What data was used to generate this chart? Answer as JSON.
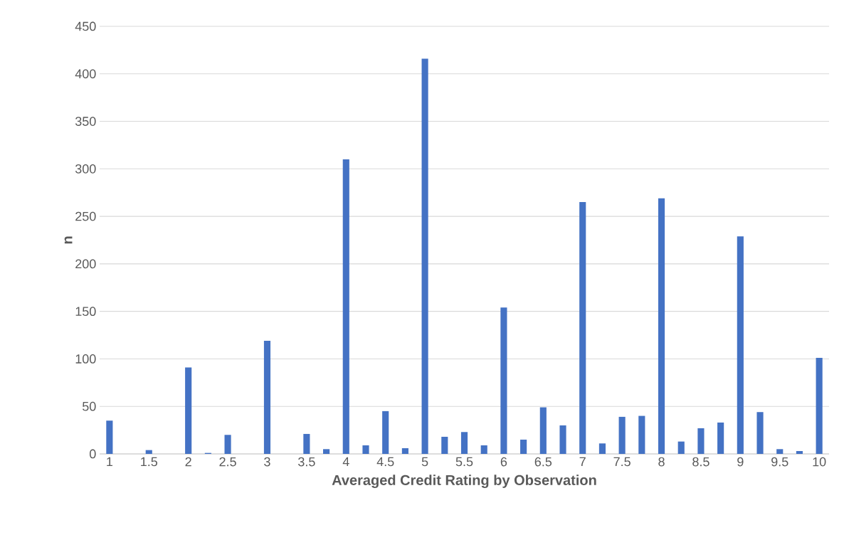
{
  "chart_data": {
    "type": "bar",
    "xlabel": "Averaged Credit Rating by Observation",
    "ylabel": "n",
    "categories": [
      "1",
      null,
      "1.5",
      null,
      "2",
      null,
      "2.5",
      null,
      "3",
      null,
      "3.5",
      null,
      "4",
      null,
      "4.5",
      null,
      "5",
      null,
      "5.5",
      null,
      "6",
      null,
      "6.5",
      null,
      "7",
      null,
      "7.5",
      null,
      "8",
      null,
      "8.5",
      null,
      "9",
      null,
      "9.5",
      null,
      "10"
    ],
    "values": [
      35,
      0,
      4,
      0,
      91,
      1,
      20,
      0,
      119,
      0,
      21,
      5,
      310,
      9,
      45,
      6,
      416,
      18,
      23,
      9,
      154,
      15,
      49,
      30,
      265,
      11,
      39,
      40,
      269,
      13,
      27,
      33,
      229,
      44,
      5,
      3,
      101
    ],
    "color": "#4472c4",
    "ylim": [
      0,
      450
    ],
    "yticks": [
      0,
      50,
      100,
      150,
      200,
      250,
      300,
      350,
      400,
      450
    ],
    "grid": "y"
  }
}
